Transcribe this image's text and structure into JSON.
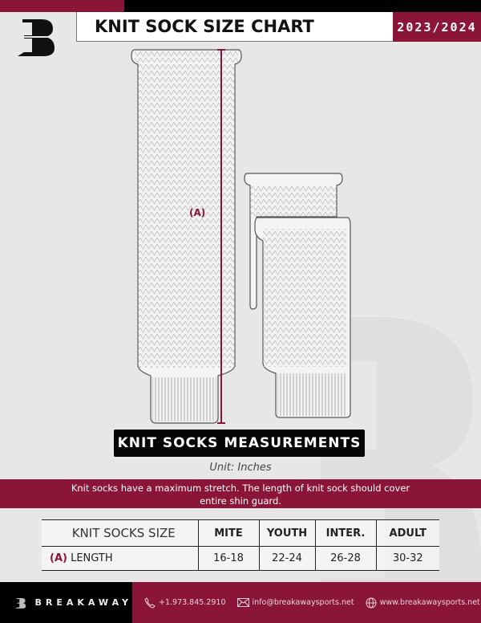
{
  "header": {
    "title": "KNIT SOCK SIZE CHART",
    "season": "2023/2024",
    "logo_text": "B"
  },
  "diagram": {
    "measure_label": "(A)",
    "measure_color": "#8a1538"
  },
  "banner": "KNIT SOCKS MEASUREMENTS",
  "unit": "Unit: Inches",
  "note": "Knit socks have a maximum stretch. The length of knit sock should cover entire shin guard.",
  "table": {
    "headers": [
      "KNIT SOCKS SIZE",
      "MITE",
      "YOUTH",
      "INTER.",
      "ADULT"
    ],
    "row": {
      "label_prefix": "(A)",
      "label": "LENGTH",
      "values": [
        "16-18",
        "22-24",
        "26-28",
        "30-32"
      ]
    }
  },
  "footer": {
    "brand": "BREAKAWAY",
    "phone": "+1.973.845.2910",
    "email": "info@breakawaysports.net",
    "website": "www.breakawaysports.net",
    "phone_icon": "phone-icon",
    "email_icon": "envelope-icon",
    "web_icon": "globe-icon"
  },
  "colors": {
    "accent": "#8a1538",
    "dark": "#000000",
    "background": "#e6e7e6"
  }
}
